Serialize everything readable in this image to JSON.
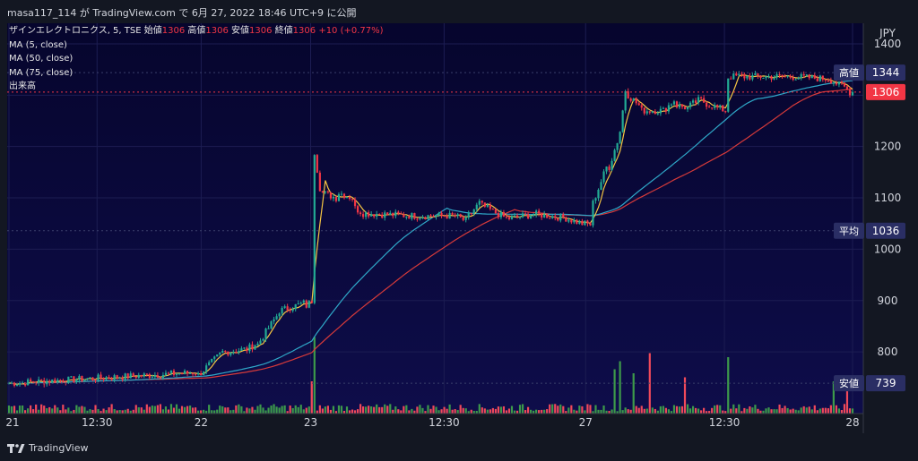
{
  "header": {
    "caption": "masa117_114 が TradingView.com で 6月 27, 2022 18:46 UTC+9 に公開"
  },
  "legend": {
    "symbol": "ザインエレクトロニクス, 5, TSE",
    "open_label": "始値",
    "open_value": "1306",
    "high_label": "高値",
    "high_value": "1306",
    "low_label": "安値",
    "low_value": "1306",
    "close_label": "終値",
    "close_value": "1306",
    "change": "+10 (+0.77%)",
    "ma5": "MA (5, close)",
    "ma50": "MA (50, close)",
    "ma75": "MA (75, close)",
    "volume": "出来高"
  },
  "branding": {
    "label": "TradingView"
  },
  "colors": {
    "up": "#22ab94",
    "down": "#f23645",
    "vol_up": "#3d9a4a",
    "vol_down": "#f0495a",
    "ma5": "#f5c542",
    "ma50": "#2fa8c8",
    "ma75": "#d63a3a",
    "background": "#131722",
    "plot_top": "#06052d",
    "plot_bottom": "#0e0d4a"
  },
  "chart_data": {
    "type": "candlestick",
    "currency": "JPY",
    "ylim": [
      680,
      1440
    ],
    "y_ticks": [
      800,
      900,
      1000,
      1100,
      1200,
      1300,
      1400
    ],
    "x_ticks": [
      {
        "label": "21",
        "pos": 0
      },
      {
        "label": "12:30",
        "pos": 33
      },
      {
        "label": "22",
        "pos": 72
      },
      {
        "label": "23",
        "pos": 113
      },
      {
        "label": "12:30",
        "pos": 163
      },
      {
        "label": "27",
        "pos": 216
      },
      {
        "label": "12:30",
        "pos": 268
      },
      {
        "label": "28",
        "pos": 316
      }
    ],
    "price_tags": [
      {
        "label": "高値",
        "value": "1344",
        "price": 1344
      },
      {
        "label": "",
        "value": "1306",
        "price": 1306,
        "highlight": true
      },
      {
        "label": "平均",
        "value": "1036",
        "price": 1036
      },
      {
        "label": "安値",
        "value": "739",
        "price": 739
      }
    ],
    "ma75_end": 1237,
    "ma50_end": 1307,
    "segments": [
      {
        "from": 0,
        "to": 70,
        "start": 739,
        "end": 760
      },
      {
        "from": 70,
        "to": 80,
        "start": 755,
        "end": 800
      },
      {
        "from": 80,
        "to": 88,
        "start": 800,
        "end": 805
      },
      {
        "from": 88,
        "to": 92,
        "start": 805,
        "end": 815
      },
      {
        "from": 92,
        "to": 100,
        "start": 815,
        "end": 870
      },
      {
        "from": 100,
        "to": 110,
        "start": 880,
        "end": 895
      },
      {
        "from": 110,
        "to": 113,
        "start": 890,
        "end": 900
      },
      {
        "from": 113,
        "to": 116,
        "start": 1190,
        "end": 1120
      },
      {
        "from": 116,
        "to": 122,
        "start": 1110,
        "end": 1100
      },
      {
        "from": 122,
        "to": 128,
        "start": 1110,
        "end": 1100
      },
      {
        "from": 128,
        "to": 132,
        "start": 1080,
        "end": 1070
      },
      {
        "from": 132,
        "to": 150,
        "start": 1070,
        "end": 1065
      },
      {
        "from": 150,
        "to": 165,
        "start": 1065,
        "end": 1065
      },
      {
        "from": 165,
        "to": 170,
        "start": 1065,
        "end": 1055
      },
      {
        "from": 170,
        "to": 175,
        "start": 1065,
        "end": 1090
      },
      {
        "from": 175,
        "to": 185,
        "start": 1085,
        "end": 1060
      },
      {
        "from": 185,
        "to": 195,
        "start": 1060,
        "end": 1068
      },
      {
        "from": 195,
        "to": 205,
        "start": 1068,
        "end": 1062
      },
      {
        "from": 205,
        "to": 213,
        "start": 1062,
        "end": 1050
      },
      {
        "from": 213,
        "to": 216,
        "start": 1050,
        "end": 1048
      },
      {
        "from": 216,
        "to": 222,
        "start": 1090,
        "end": 1160
      },
      {
        "from": 222,
        "to": 226,
        "start": 1160,
        "end": 1210
      },
      {
        "from": 226,
        "to": 229,
        "start": 1230,
        "end": 1310
      },
      {
        "from": 229,
        "to": 234,
        "start": 1300,
        "end": 1280
      },
      {
        "from": 234,
        "to": 242,
        "start": 1270,
        "end": 1270
      },
      {
        "from": 242,
        "to": 247,
        "start": 1270,
        "end": 1290
      },
      {
        "from": 247,
        "to": 252,
        "start": 1280,
        "end": 1275
      },
      {
        "from": 252,
        "to": 256,
        "start": 1280,
        "end": 1290
      },
      {
        "from": 256,
        "to": 260,
        "start": 1290,
        "end": 1280
      },
      {
        "from": 260,
        "to": 266,
        "start": 1280,
        "end": 1270
      },
      {
        "from": 266,
        "to": 272,
        "start": 1335,
        "end": 1338
      },
      {
        "from": 272,
        "to": 290,
        "start": 1336,
        "end": 1336
      },
      {
        "from": 290,
        "to": 303,
        "start": 1336,
        "end": 1332
      },
      {
        "from": 303,
        "to": 308,
        "start": 1332,
        "end": 1320
      },
      {
        "from": 308,
        "to": 312,
        "start": 1320,
        "end": 1306
      }
    ],
    "n_bars": 313,
    "volume_spikes": [
      {
        "bar": 113,
        "value": 95
      },
      {
        "bar": 112,
        "value": 40
      },
      {
        "bar": 237,
        "value": 75
      },
      {
        "bar": 226,
        "value": 65
      },
      {
        "bar": 224,
        "value": 55
      },
      {
        "bar": 266,
        "value": 70
      },
      {
        "bar": 231,
        "value": 50
      },
      {
        "bar": 250,
        "value": 45
      },
      {
        "bar": 305,
        "value": 40
      },
      {
        "bar": 310,
        "value": 30
      }
    ]
  }
}
